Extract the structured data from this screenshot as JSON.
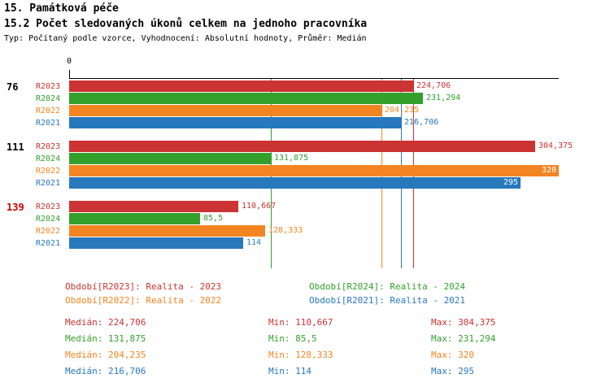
{
  "header": {
    "title1": "15. Památková péče",
    "title2": "15.2 Počet sledovaných úkonů celkem na jednoho pracovníka",
    "subtitle": "Typ: Počítaný podle vzorce, Vyhodnocení: Absolutní hodnoty, Průměr: Medián"
  },
  "colors": {
    "R2023": "#cc3333",
    "R2024": "#33a02c",
    "R2022": "#f28522",
    "R2021": "#2878be",
    "axis": "#000000",
    "highlight_group": "#cc0000"
  },
  "chart_data": {
    "type": "bar",
    "orientation": "horizontal",
    "title": "15.2 Počet sledovaných úkonů celkem na jednoho pracovníka",
    "x_axis": {
      "min": 0,
      "max": 320,
      "zero_label": "0"
    },
    "grid": false,
    "series": [
      {
        "id": "R2023",
        "legend": "Realita - 2023"
      },
      {
        "id": "R2024",
        "legend": "Realita - 2024"
      },
      {
        "id": "R2022",
        "legend": "Realita - 2022"
      },
      {
        "id": "R2021",
        "legend": "Realita - 2021"
      }
    ],
    "groups": [
      {
        "label": "76",
        "label_color": "#000000",
        "bars": [
          {
            "series": "R2023",
            "value": 224.706,
            "display": "224,706",
            "label_inside": false
          },
          {
            "series": "R2024",
            "value": 231.294,
            "display": "231,294",
            "label_inside": false
          },
          {
            "series": "R2022",
            "value": 204.235,
            "display": "204,235",
            "label_inside": false
          },
          {
            "series": "R2021",
            "value": 216.706,
            "display": "216,706",
            "label_inside": false
          }
        ]
      },
      {
        "label": "111",
        "label_color": "#000000",
        "bars": [
          {
            "series": "R2023",
            "value": 304.375,
            "display": "304,375",
            "label_inside": false
          },
          {
            "series": "R2024",
            "value": 131.875,
            "display": "131,875",
            "label_inside": false
          },
          {
            "series": "R2022",
            "value": 320,
            "display": "320",
            "label_inside": true
          },
          {
            "series": "R2021",
            "value": 295,
            "display": "295",
            "label_inside": true
          }
        ]
      },
      {
        "label": "139",
        "label_color": "#cc0000",
        "bars": [
          {
            "series": "R2023",
            "value": 110.667,
            "display": "110,667",
            "label_inside": false
          },
          {
            "series": "R2024",
            "value": 85.5,
            "display": "85,5",
            "label_inside": false
          },
          {
            "series": "R2022",
            "value": 128.333,
            "display": "128,333",
            "label_inside": false
          },
          {
            "series": "R2021",
            "value": 114,
            "display": "114",
            "label_inside": false
          }
        ]
      }
    ],
    "medians": [
      {
        "series": "R2023",
        "value": 224.706
      },
      {
        "series": "R2024",
        "value": 131.875
      },
      {
        "series": "R2022",
        "value": 204.235
      },
      {
        "series": "R2021",
        "value": 216.706
      }
    ]
  },
  "legend": [
    {
      "series": "R2023",
      "label": "Období[R2023]: Realita - 2023"
    },
    {
      "series": "R2024",
      "label": "Období[R2024]: Realita - 2024"
    },
    {
      "series": "R2022",
      "label": "Období[R2022]: Realita - 2022"
    },
    {
      "series": "R2021",
      "label": "Období[R2021]: Realita - 2021"
    }
  ],
  "stats": [
    {
      "series": "R2023",
      "median": "Medián: 224,706",
      "min": "Min: 110,667",
      "max": "Max: 304,375"
    },
    {
      "series": "R2024",
      "median": "Medián: 131,875",
      "min": "Min: 85,5",
      "max": "Max: 231,294"
    },
    {
      "series": "R2022",
      "median": "Medián: 204,235",
      "min": "Min: 128,333",
      "max": "Max: 320"
    },
    {
      "series": "R2021",
      "median": "Medián: 216,706",
      "min": "Min: 114",
      "max": "Max: 295"
    }
  ]
}
